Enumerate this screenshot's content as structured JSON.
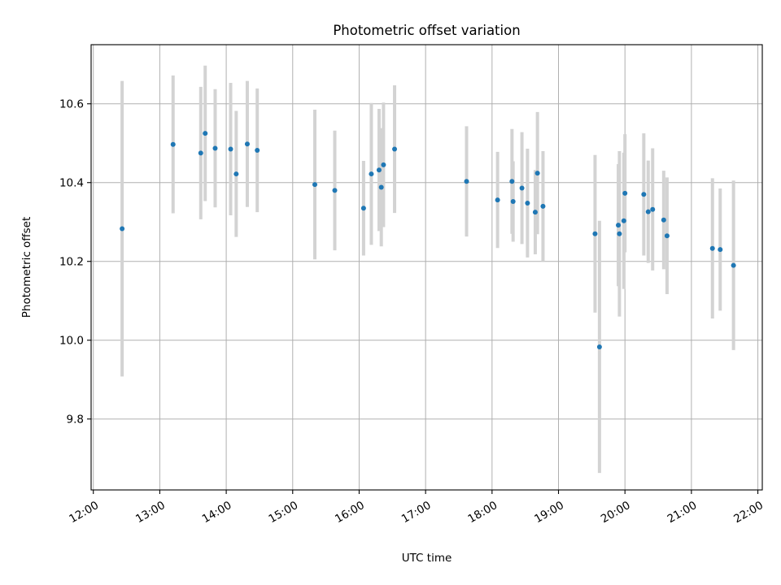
{
  "chart_data": {
    "type": "scatter",
    "title": "Photometric offset variation",
    "xlabel": "UTC time",
    "ylabel": "Photometric offset",
    "grid": true,
    "xlim": [
      "11:58",
      "22:04"
    ],
    "ylim": [
      9.62,
      10.75
    ],
    "xticks": [
      "12:00",
      "13:00",
      "14:00",
      "15:00",
      "16:00",
      "17:00",
      "18:00",
      "19:00",
      "20:00",
      "21:00",
      "22:00"
    ],
    "yticks": [
      9.8,
      10.0,
      10.2,
      10.4,
      10.6
    ],
    "colors": {
      "point": "#1f77b4",
      "errorbar": "#d3d3d3"
    },
    "points": [
      {
        "x": "12:26",
        "y": 10.283,
        "err": 0.375
      },
      {
        "x": "13:12",
        "y": 10.497,
        "err": 0.175
      },
      {
        "x": "13:37",
        "y": 10.475,
        "err": 0.168
      },
      {
        "x": "13:41",
        "y": 10.525,
        "err": 0.172
      },
      {
        "x": "13:50",
        "y": 10.487,
        "err": 0.15
      },
      {
        "x": "14:04",
        "y": 10.485,
        "err": 0.168
      },
      {
        "x": "14:09",
        "y": 10.422,
        "err": 0.16
      },
      {
        "x": "14:19",
        "y": 10.498,
        "err": 0.16
      },
      {
        "x": "14:28",
        "y": 10.482,
        "err": 0.157
      },
      {
        "x": "15:20",
        "y": 10.395,
        "err": 0.19
      },
      {
        "x": "15:38",
        "y": 10.38,
        "err": 0.152
      },
      {
        "x": "16:04",
        "y": 10.335,
        "err": 0.12
      },
      {
        "x": "16:11",
        "y": 10.422,
        "err": 0.18
      },
      {
        "x": "16:18",
        "y": 10.432,
        "err": 0.155
      },
      {
        "x": "16:20",
        "y": 10.388,
        "err": 0.15
      },
      {
        "x": "16:22",
        "y": 10.445,
        "err": 0.158
      },
      {
        "x": "16:32",
        "y": 10.485,
        "err": 0.162
      },
      {
        "x": "17:37",
        "y": 10.403,
        "err": 0.14
      },
      {
        "x": "18:05",
        "y": 10.356,
        "err": 0.122
      },
      {
        "x": "18:18",
        "y": 10.403,
        "err": 0.133
      },
      {
        "x": "18:19",
        "y": 10.352,
        "err": 0.102
      },
      {
        "x": "18:27",
        "y": 10.386,
        "err": 0.142
      },
      {
        "x": "18:32",
        "y": 10.348,
        "err": 0.138
      },
      {
        "x": "18:39",
        "y": 10.325,
        "err": 0.107
      },
      {
        "x": "18:41",
        "y": 10.424,
        "err": 0.155
      },
      {
        "x": "18:46",
        "y": 10.34,
        "err": 0.14
      },
      {
        "x": "19:33",
        "y": 10.27,
        "err": 0.2
      },
      {
        "x": "19:37",
        "y": 9.983,
        "err": 0.32
      },
      {
        "x": "19:54",
        "y": 10.292,
        "err": 0.155
      },
      {
        "x": "19:55",
        "y": 10.27,
        "err": 0.21
      },
      {
        "x": "19:59",
        "y": 10.303,
        "err": 0.173
      },
      {
        "x": "20:00",
        "y": 10.373,
        "err": 0.15
      },
      {
        "x": "20:17",
        "y": 10.37,
        "err": 0.155
      },
      {
        "x": "20:21",
        "y": 10.326,
        "err": 0.13
      },
      {
        "x": "20:25",
        "y": 10.332,
        "err": 0.155
      },
      {
        "x": "20:35",
        "y": 10.305,
        "err": 0.125
      },
      {
        "x": "20:38",
        "y": 10.265,
        "err": 0.148
      },
      {
        "x": "21:19",
        "y": 10.233,
        "err": 0.178
      },
      {
        "x": "21:26",
        "y": 10.23,
        "err": 0.155
      },
      {
        "x": "21:38",
        "y": 10.19,
        "err": 0.215
      }
    ]
  }
}
